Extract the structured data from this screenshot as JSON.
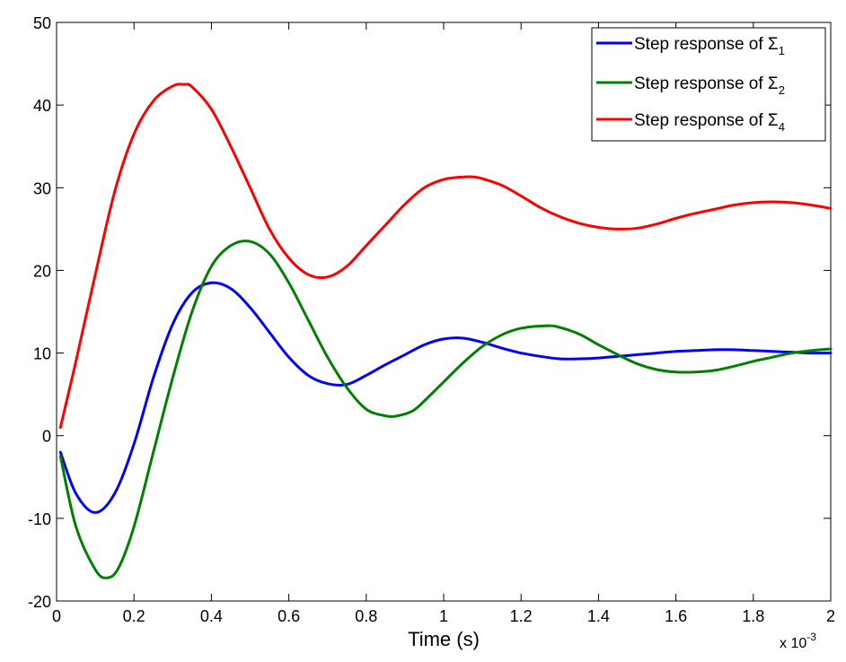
{
  "chart_data": {
    "type": "line",
    "title": "",
    "xlabel": "Time (s)",
    "ylabel": "",
    "x_multiplier_label": "x 10",
    "x_multiplier_exponent": "-3",
    "xlim": [
      0,
      2
    ],
    "ylim": [
      -20,
      50
    ],
    "xticks": [
      0,
      0.2,
      0.4,
      0.6,
      0.8,
      1,
      1.2,
      1.4,
      1.6,
      1.8,
      2
    ],
    "xtick_labels": [
      "0",
      "0.2",
      "0.4",
      "0.6",
      "0.8",
      "1",
      "1.2",
      "1.4",
      "1.6",
      "1.8",
      "2"
    ],
    "yticks": [
      -20,
      -10,
      0,
      10,
      20,
      30,
      40,
      50
    ],
    "ytick_labels": [
      "-20",
      "-10",
      "0",
      "10",
      "20",
      "30",
      "40",
      "50"
    ],
    "grid": false,
    "legend_position": "top-right",
    "series": [
      {
        "name": "Step response of Σ1",
        "legend_text": "Step response of Σ",
        "legend_sub": "1",
        "color": "#0000ff",
        "x": [
          0.01,
          0.05,
          0.1,
          0.15,
          0.2,
          0.25,
          0.3,
          0.35,
          0.4,
          0.45,
          0.5,
          0.55,
          0.6,
          0.65,
          0.7,
          0.75,
          0.8,
          0.85,
          0.9,
          0.95,
          1.0,
          1.05,
          1.1,
          1.15,
          1.2,
          1.25,
          1.3,
          1.35,
          1.4,
          1.45,
          1.5,
          1.55,
          1.6,
          1.65,
          1.7,
          1.75,
          1.8,
          1.85,
          1.9,
          1.95,
          2.0
        ],
        "y": [
          -2,
          -7,
          -9.3,
          -7,
          -1,
          7,
          13.5,
          17.3,
          18.5,
          17.8,
          15.5,
          12.5,
          9.5,
          7.3,
          6.3,
          6.2,
          7.3,
          8.6,
          9.8,
          11.0,
          11.7,
          11.8,
          11.3,
          10.6,
          10.0,
          9.6,
          9.3,
          9.3,
          9.4,
          9.6,
          9.8,
          10.0,
          10.2,
          10.3,
          10.4,
          10.4,
          10.3,
          10.2,
          10.1,
          10.0,
          10.0
        ]
      },
      {
        "name": "Step response of Σ2",
        "legend_text": "Step response of Σ",
        "legend_sub": "2",
        "color": "#008000",
        "x": [
          0.01,
          0.05,
          0.1,
          0.13,
          0.16,
          0.2,
          0.25,
          0.3,
          0.35,
          0.4,
          0.45,
          0.5,
          0.55,
          0.6,
          0.65,
          0.7,
          0.75,
          0.8,
          0.85,
          0.88,
          0.92,
          0.95,
          1.0,
          1.05,
          1.1,
          1.15,
          1.2,
          1.27,
          1.3,
          1.35,
          1.4,
          1.45,
          1.5,
          1.55,
          1.6,
          1.65,
          1.7,
          1.75,
          1.8,
          1.85,
          1.9,
          1.95,
          2.0
        ],
        "y": [
          -2.5,
          -11,
          -16.2,
          -17.2,
          -16,
          -11,
          -2,
          7,
          15,
          20.5,
          23,
          23.5,
          22,
          18.5,
          14,
          9.5,
          5.8,
          3.2,
          2.4,
          2.4,
          3.0,
          4.2,
          6.5,
          8.8,
          10.8,
          12.2,
          13.0,
          13.3,
          13.1,
          12.3,
          11.0,
          9.8,
          8.7,
          8.0,
          7.7,
          7.7,
          7.9,
          8.4,
          9.0,
          9.5,
          10.0,
          10.3,
          10.5
        ]
      },
      {
        "name": "Step response of Σ4",
        "legend_text": "Step response of Σ",
        "legend_sub": "4",
        "color": "#ff0000",
        "x": [
          0.01,
          0.05,
          0.1,
          0.15,
          0.2,
          0.25,
          0.3,
          0.33,
          0.35,
          0.4,
          0.45,
          0.5,
          0.55,
          0.6,
          0.65,
          0.7,
          0.75,
          0.8,
          0.85,
          0.9,
          0.95,
          1.0,
          1.05,
          1.08,
          1.1,
          1.15,
          1.2,
          1.25,
          1.3,
          1.35,
          1.4,
          1.45,
          1.5,
          1.55,
          1.6,
          1.65,
          1.7,
          1.75,
          1.8,
          1.85,
          1.9,
          1.95,
          2.0
        ],
        "y": [
          1,
          9,
          19.5,
          29.5,
          36.5,
          40.5,
          42.3,
          42.5,
          42.2,
          39.5,
          35,
          30,
          25,
          21.5,
          19.5,
          19.2,
          20.5,
          23,
          25.5,
          28,
          30,
          31,
          31.3,
          31.3,
          31.1,
          30.3,
          29,
          27.6,
          26.5,
          25.7,
          25.2,
          25.0,
          25.1,
          25.6,
          26.3,
          26.9,
          27.4,
          27.9,
          28.2,
          28.3,
          28.2,
          27.9,
          27.5
        ]
      }
    ]
  }
}
